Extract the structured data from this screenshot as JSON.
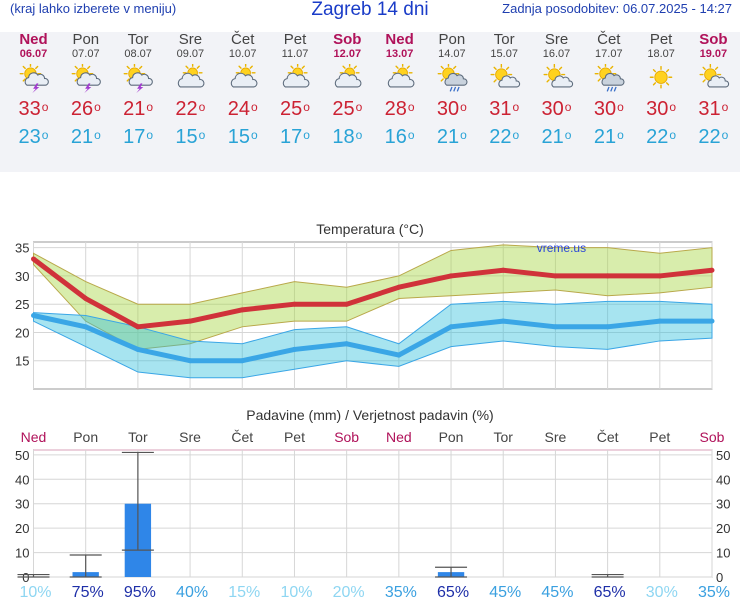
{
  "header": {
    "note": "(kraj lahko izberete v meniju)",
    "title": "Zagreb 14 dni",
    "updated": "Zadnja posodobitev: 06.07.2025 - 14:27"
  },
  "days": [
    {
      "name": "Ned",
      "date": "06.07",
      "weekend": true,
      "icon": "thunderstorm-sun-icon",
      "tmax": "33",
      "tmin": "23"
    },
    {
      "name": "Pon",
      "date": "07.07",
      "weekend": false,
      "icon": "thunderstorm-sun-icon",
      "tmax": "26",
      "tmin": "21"
    },
    {
      "name": "Tor",
      "date": "08.07",
      "weekend": false,
      "icon": "thunderstorm-sun-icon",
      "tmax": "21",
      "tmin": "17"
    },
    {
      "name": "Sre",
      "date": "09.07",
      "weekend": false,
      "icon": "partly-cloudy-icon",
      "tmax": "22",
      "tmin": "15"
    },
    {
      "name": "Čet",
      "date": "10.07",
      "weekend": false,
      "icon": "partly-cloudy-icon",
      "tmax": "24",
      "tmin": "15"
    },
    {
      "name": "Pet",
      "date": "11.07",
      "weekend": false,
      "icon": "partly-cloudy-icon",
      "tmax": "25",
      "tmin": "17"
    },
    {
      "name": "Sob",
      "date": "12.07",
      "weekend": true,
      "icon": "partly-cloudy-icon",
      "tmax": "25",
      "tmin": "18"
    },
    {
      "name": "Ned",
      "date": "13.07",
      "weekend": true,
      "icon": "partly-cloudy-icon",
      "tmax": "28",
      "tmin": "16"
    },
    {
      "name": "Pon",
      "date": "14.07",
      "weekend": false,
      "icon": "sun-cloud-rain-icon",
      "tmax": "30",
      "tmin": "21"
    },
    {
      "name": "Tor",
      "date": "15.07",
      "weekend": false,
      "icon": "sun-small-cloud-icon",
      "tmax": "31",
      "tmin": "22"
    },
    {
      "name": "Sre",
      "date": "16.07",
      "weekend": false,
      "icon": "sun-small-cloud-icon",
      "tmax": "30",
      "tmin": "21"
    },
    {
      "name": "Čet",
      "date": "17.07",
      "weekend": false,
      "icon": "sun-cloud-rain-icon",
      "tmax": "30",
      "tmin": "21"
    },
    {
      "name": "Pet",
      "date": "18.07",
      "weekend": false,
      "icon": "sunny-icon",
      "tmax": "30",
      "tmin": "22"
    },
    {
      "name": "Sob",
      "date": "19.07",
      "weekend": true,
      "icon": "sun-small-cloud-icon",
      "tmax": "31",
      "tmin": "22"
    }
  ],
  "chart_data": [
    {
      "type": "line",
      "title": "Temperatura (°C)",
      "watermark": "vreme.us",
      "ylim": [
        10,
        36
      ],
      "yticks": [
        15,
        20,
        25,
        30,
        35
      ],
      "series": [
        {
          "name": "max",
          "color": "#d0323a",
          "values": [
            33,
            26,
            21,
            22,
            24,
            25,
            25,
            28,
            30,
            31,
            30,
            30,
            30,
            31
          ]
        },
        {
          "name": "min",
          "color": "#3aa6e6",
          "values": [
            23,
            21,
            17,
            15,
            15,
            17,
            18,
            16,
            21,
            22,
            21,
            21,
            22,
            22
          ]
        },
        {
          "name": "max-band-high",
          "values": [
            34,
            29,
            25,
            25,
            27,
            29,
            28,
            30,
            34.5,
            35.5,
            35,
            35,
            34,
            35
          ]
        },
        {
          "name": "max-band-low",
          "values": [
            32,
            22,
            17,
            18,
            21,
            22,
            22,
            26,
            26.5,
            27,
            27.5,
            26.5,
            27,
            28
          ]
        },
        {
          "name": "min-band-high",
          "values": [
            23.5,
            23,
            21,
            18.5,
            18,
            20.5,
            21,
            18,
            25,
            25.5,
            25,
            25.5,
            25.5,
            25
          ]
        },
        {
          "name": "min-band-low",
          "values": [
            22,
            17.5,
            13,
            12,
            12,
            13.5,
            15,
            14,
            17.5,
            18.5,
            17.5,
            17,
            18.5,
            19
          ]
        }
      ],
      "grid": true
    },
    {
      "type": "bar",
      "title": "Padavine (mm) / Verjetnost padavin (%)",
      "ylim": [
        0,
        52
      ],
      "yticks": [
        0,
        10,
        20,
        30,
        40,
        50
      ],
      "categories": [
        "Ned",
        "Pon",
        "Tor",
        "Sre",
        "Čet",
        "Pet",
        "Sob",
        "Ned",
        "Pon",
        "Tor",
        "Sre",
        "Čet",
        "Pet",
        "Sob"
      ],
      "weekend": [
        true,
        false,
        false,
        false,
        false,
        false,
        true,
        true,
        false,
        false,
        false,
        false,
        false,
        true
      ],
      "values": [
        0,
        2,
        30,
        0,
        0,
        0,
        0,
        0,
        2,
        0,
        0,
        0,
        0,
        0
      ],
      "range_low": [
        0,
        0,
        11,
        0,
        0,
        0,
        0,
        0,
        0,
        0,
        0,
        0,
        0,
        0
      ],
      "range_high": [
        1,
        9,
        51,
        0,
        0,
        0,
        0,
        0,
        4,
        0,
        0,
        1,
        0,
        0
      ],
      "probability": [
        "10%",
        "75%",
        "95%",
        "40%",
        "15%",
        "10%",
        "20%",
        "35%",
        "65%",
        "45%",
        "45%",
        "65%",
        "30%",
        "35%"
      ],
      "bar_color": "#2f86e8",
      "grid": true
    }
  ]
}
